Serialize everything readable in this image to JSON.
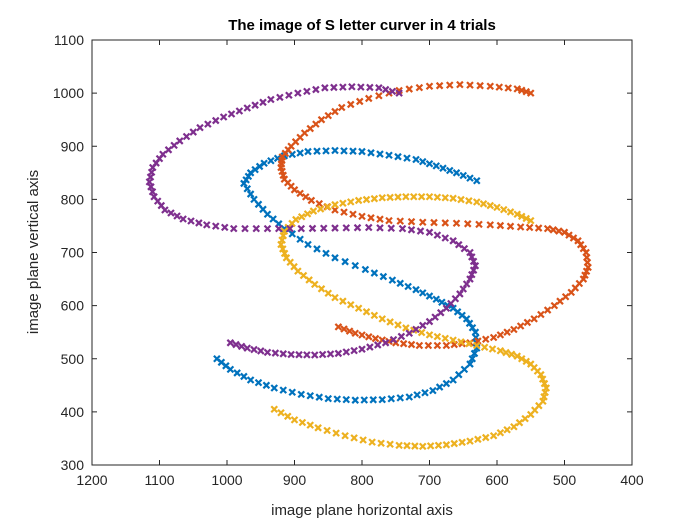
{
  "chart_data": {
    "type": "scatter",
    "title": "The image of S letter curver in 4 trials",
    "xlabel": "image plane horizontal axis",
    "ylabel": "image plane vertical axis",
    "xlim": [
      1200,
      400
    ],
    "ylim": [
      300,
      1100
    ],
    "x_reversed": true,
    "x_ticks": [
      1200,
      1100,
      1000,
      900,
      800,
      700,
      600,
      500,
      400
    ],
    "y_ticks": [
      300,
      400,
      500,
      600,
      700,
      800,
      900,
      1000,
      1100
    ],
    "grid": false,
    "legend": "none",
    "marker": "x",
    "series": [
      {
        "color": "#0072BD",
        "points": [
          [
            1015,
            500
          ],
          [
            995,
            480
          ],
          [
            965,
            460
          ],
          [
            930,
            445
          ],
          [
            890,
            433
          ],
          [
            850,
            425
          ],
          [
            810,
            422
          ],
          [
            770,
            423
          ],
          [
            730,
            428
          ],
          [
            695,
            440
          ],
          [
            665,
            460
          ],
          [
            640,
            490
          ],
          [
            630,
            520
          ],
          [
            632,
            550
          ],
          [
            645,
            575
          ],
          [
            665,
            595
          ],
          [
            690,
            612
          ],
          [
            720,
            630
          ],
          [
            755,
            648
          ],
          [
            795,
            668
          ],
          [
            840,
            690
          ],
          [
            880,
            715
          ],
          [
            915,
            745
          ],
          [
            940,
            772
          ],
          [
            960,
            800
          ],
          [
            975,
            830
          ],
          [
            965,
            850
          ],
          [
            945,
            868
          ],
          [
            915,
            882
          ],
          [
            880,
            890
          ],
          [
            840,
            892
          ],
          [
            800,
            890
          ],
          [
            760,
            883
          ],
          [
            720,
            875
          ],
          [
            690,
            863
          ],
          [
            660,
            850
          ],
          [
            630,
            835
          ]
        ]
      },
      {
        "color": "#D95319",
        "points": [
          [
            835,
            560
          ],
          [
            810,
            548
          ],
          [
            780,
            538
          ],
          [
            750,
            530
          ],
          [
            715,
            525
          ],
          [
            675,
            525
          ],
          [
            640,
            530
          ],
          [
            605,
            540
          ],
          [
            575,
            555
          ],
          [
            545,
            575
          ],
          [
            515,
            600
          ],
          [
            490,
            625
          ],
          [
            472,
            650
          ],
          [
            465,
            672
          ],
          [
            468,
            700
          ],
          [
            480,
            722
          ],
          [
            500,
            738
          ],
          [
            525,
            745
          ],
          [
            565,
            748
          ],
          [
            610,
            752
          ],
          [
            660,
            755
          ],
          [
            710,
            757
          ],
          [
            760,
            760
          ],
          [
            800,
            768
          ],
          [
            840,
            780
          ],
          [
            875,
            798
          ],
          [
            900,
            818
          ],
          [
            915,
            838
          ],
          [
            920,
            860
          ],
          [
            918,
            880
          ],
          [
            905,
            900
          ],
          [
            885,
            925
          ],
          [
            860,
            950
          ],
          [
            830,
            973
          ],
          [
            790,
            990
          ],
          [
            745,
            1005
          ],
          [
            700,
            1013
          ],
          [
            655,
            1016
          ],
          [
            610,
            1013
          ],
          [
            570,
            1008
          ],
          [
            550,
            1000
          ]
        ]
      },
      {
        "color": "#EDB120",
        "points": [
          [
            930,
            405
          ],
          [
            900,
            385
          ],
          [
            865,
            370
          ],
          [
            825,
            355
          ],
          [
            785,
            343
          ],
          [
            745,
            337
          ],
          [
            710,
            335
          ],
          [
            675,
            338
          ],
          [
            640,
            345
          ],
          [
            605,
            355
          ],
          [
            575,
            372
          ],
          [
            550,
            395
          ],
          [
            532,
            420
          ],
          [
            527,
            445
          ],
          [
            535,
            470
          ],
          [
            550,
            490
          ],
          [
            570,
            505
          ],
          [
            595,
            515
          ],
          [
            630,
            525
          ],
          [
            665,
            535
          ],
          [
            700,
            545
          ],
          [
            735,
            558
          ],
          [
            770,
            575
          ],
          [
            805,
            595
          ],
          [
            840,
            615
          ],
          [
            870,
            640
          ],
          [
            895,
            665
          ],
          [
            912,
            690
          ],
          [
            920,
            715
          ],
          [
            915,
            740
          ],
          [
            898,
            762
          ],
          [
            872,
            778
          ],
          [
            840,
            790
          ],
          [
            805,
            798
          ],
          [
            770,
            803
          ],
          [
            735,
            805
          ],
          [
            700,
            805
          ],
          [
            665,
            802
          ],
          [
            630,
            795
          ],
          [
            600,
            785
          ],
          [
            570,
            772
          ],
          [
            550,
            760
          ]
        ]
      },
      {
        "color": "#7E2F8E",
        "points": [
          [
            995,
            530
          ],
          [
            970,
            520
          ],
          [
            940,
            512
          ],
          [
            905,
            508
          ],
          [
            870,
            507
          ],
          [
            835,
            510
          ],
          [
            800,
            518
          ],
          [
            765,
            530
          ],
          [
            730,
            548
          ],
          [
            700,
            570
          ],
          [
            675,
            595
          ],
          [
            655,
            622
          ],
          [
            640,
            650
          ],
          [
            632,
            675
          ],
          [
            640,
            700
          ],
          [
            665,
            722
          ],
          [
            700,
            738
          ],
          [
            740,
            745
          ],
          [
            790,
            747
          ],
          [
            840,
            746
          ],
          [
            890,
            745
          ],
          [
            940,
            745
          ],
          [
            990,
            745
          ],
          [
            1030,
            752
          ],
          [
            1065,
            763
          ],
          [
            1092,
            780
          ],
          [
            1108,
            805
          ],
          [
            1115,
            833
          ],
          [
            1110,
            860
          ],
          [
            1095,
            885
          ],
          [
            1070,
            910
          ],
          [
            1040,
            935
          ],
          [
            1005,
            955
          ],
          [
            970,
            972
          ],
          [
            935,
            988
          ],
          [
            895,
            1000
          ],
          [
            855,
            1010
          ],
          [
            815,
            1012
          ],
          [
            775,
            1010
          ],
          [
            745,
            1000
          ]
        ]
      }
    ]
  }
}
